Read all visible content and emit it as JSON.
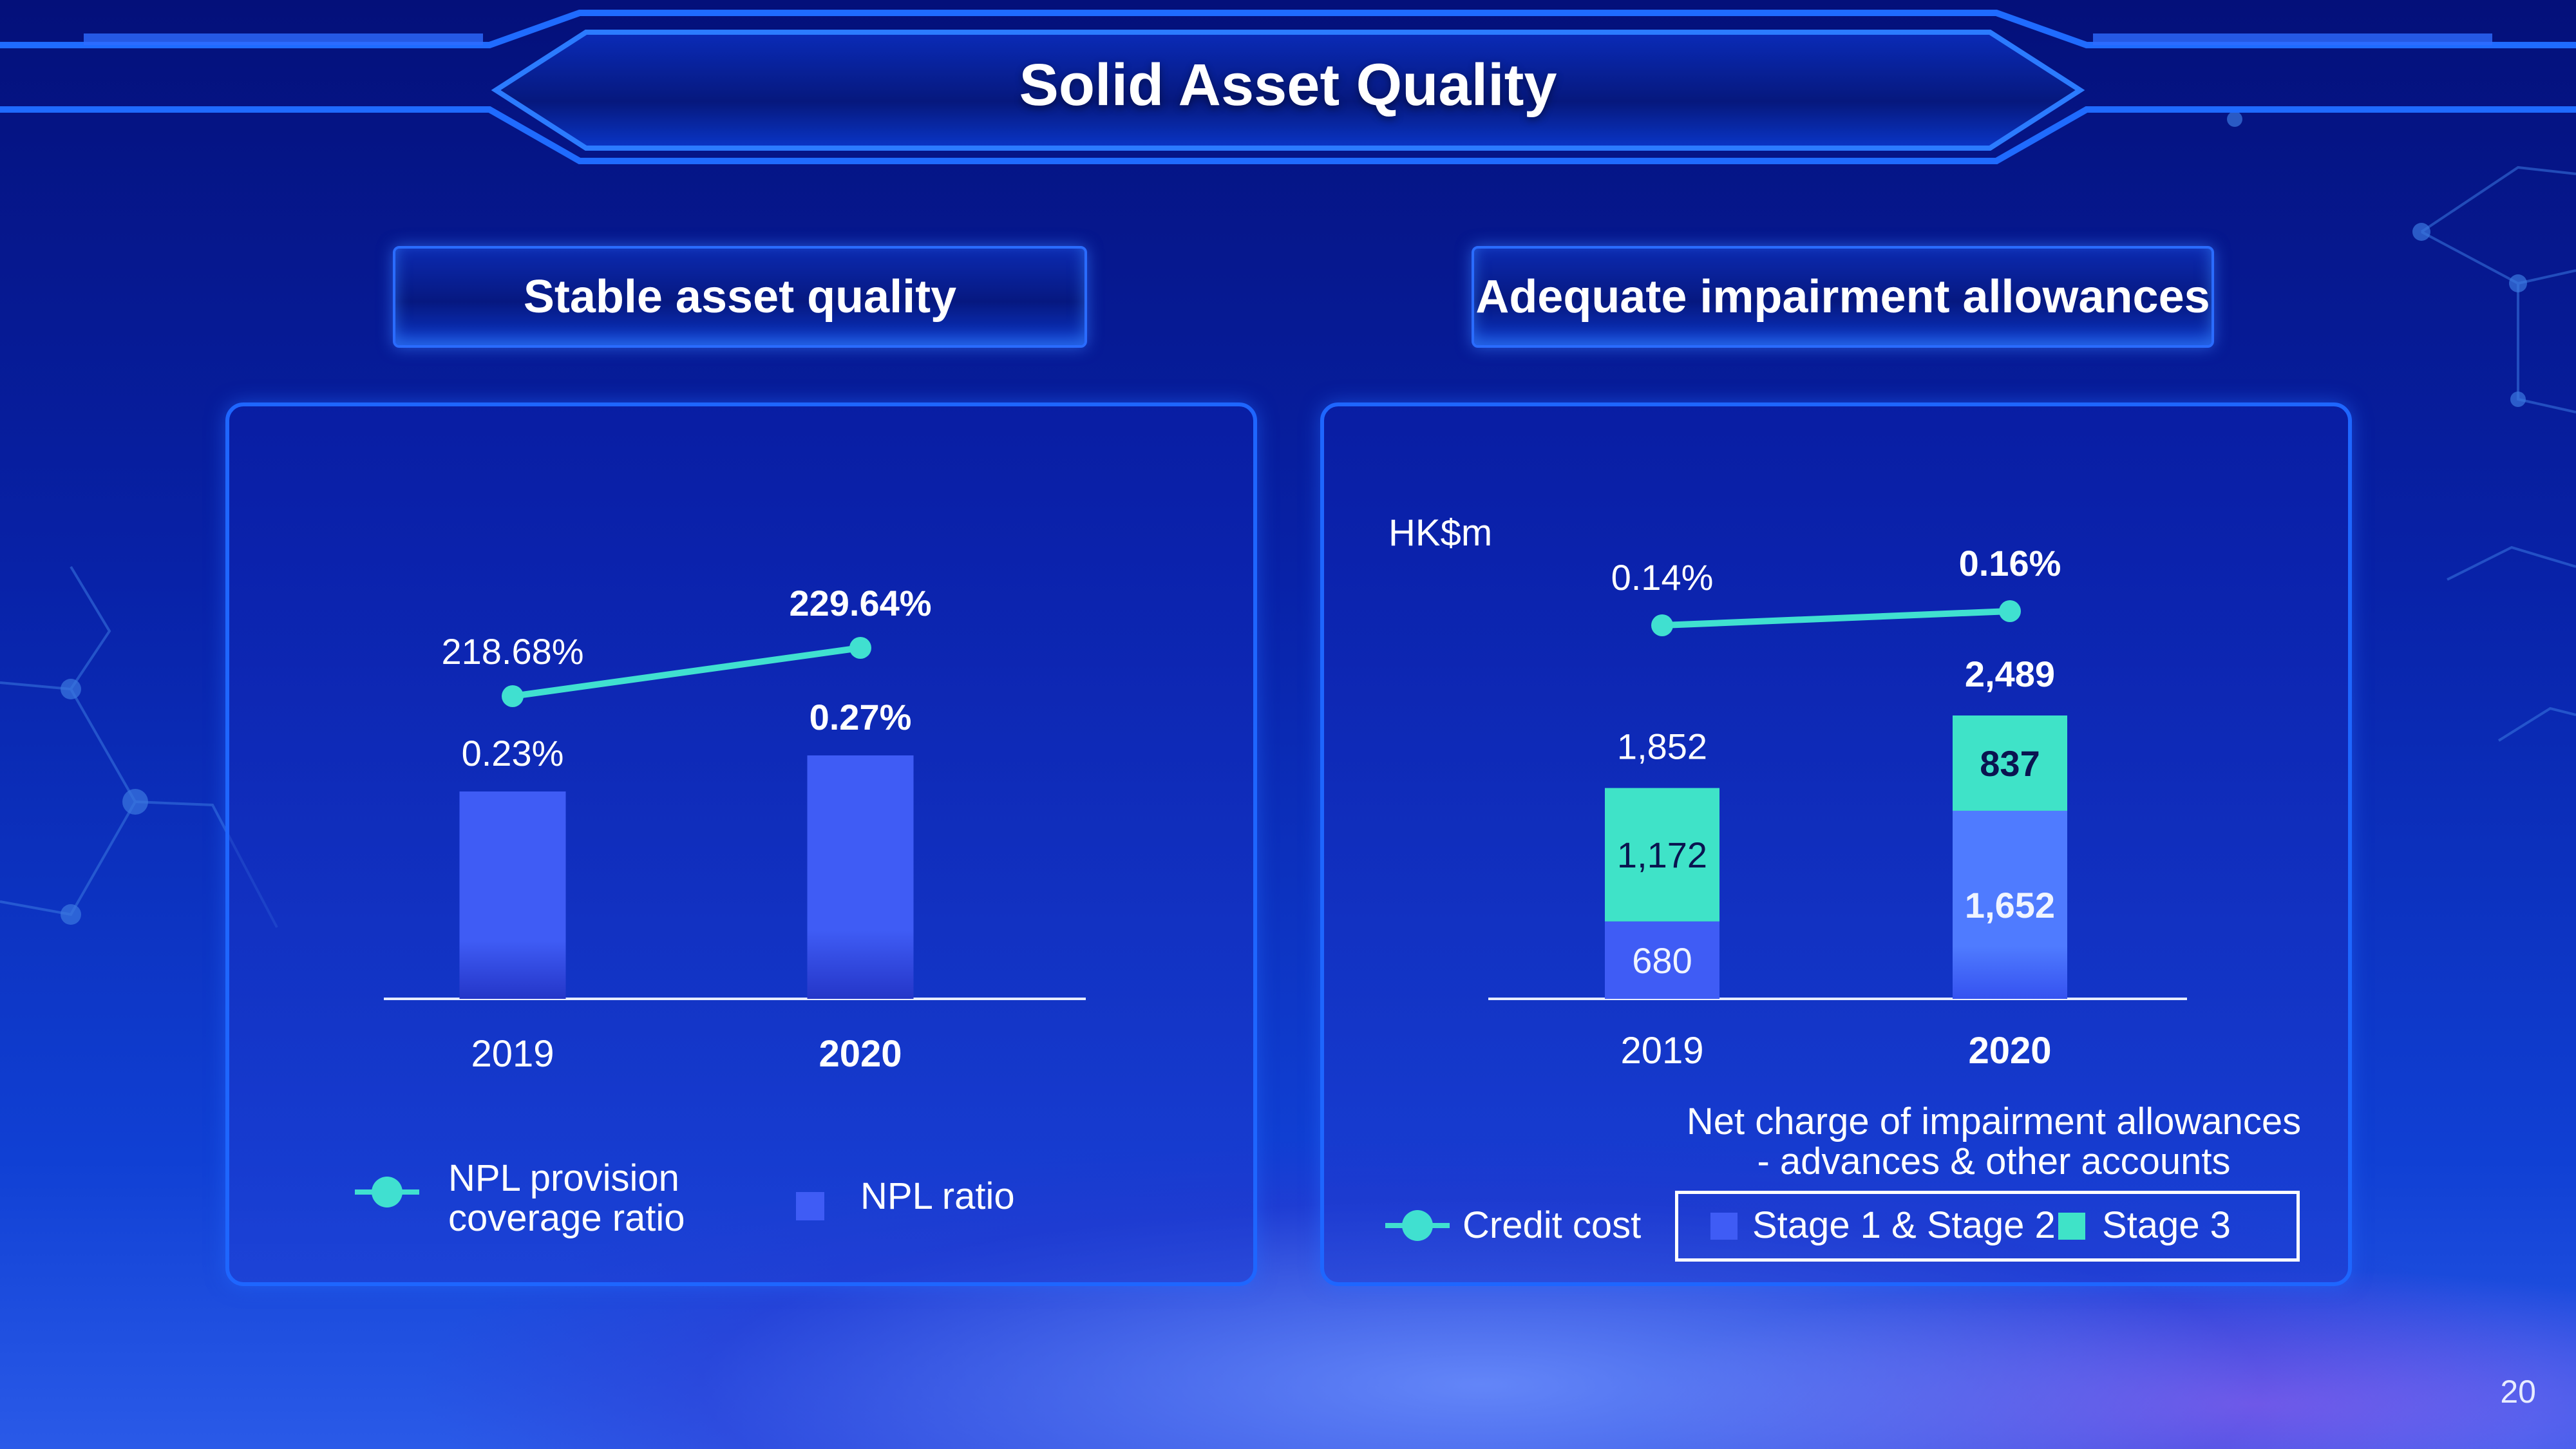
{
  "page": {
    "title": "Solid Asset Quality",
    "page_number": "20"
  },
  "left_section": {
    "title": "Stable asset quality",
    "legend": {
      "line_label": "NPL provision\ncoverage ratio",
      "bar_label": "NPL ratio"
    }
  },
  "right_section": {
    "title": "Adequate impairment allowances",
    "unit_label": "HK$m",
    "note": "Net charge of impairment allowances\n- advances & other accounts",
    "legend": {
      "line_label": "Credit cost",
      "stage12_label": "Stage 1 & Stage 2",
      "stage3_label": "Stage 3"
    }
  },
  "colors": {
    "bar_blue": "#3f5cf5",
    "bar_blue_light": "#4f7bff",
    "teal": "#3fe3c8",
    "line": "#40e0d0",
    "panel_border": "#1e66ff"
  },
  "chart_data": [
    {
      "type": "bar",
      "categories": [
        "2019",
        "2020"
      ],
      "series": [
        {
          "name": "NPL ratio",
          "values": [
            0.23,
            0.27
          ],
          "labels": [
            "0.23%",
            "0.27%"
          ]
        },
        {
          "name": "NPL provision coverage ratio",
          "type": "line",
          "values": [
            218.68,
            229.64
          ],
          "labels": [
            "218.68%",
            "229.64%"
          ]
        }
      ],
      "emphasis_category": "2020"
    },
    {
      "type": "bar",
      "stacked": true,
      "categories": [
        "2019",
        "2020"
      ],
      "ylabel": "HK$m",
      "series": [
        {
          "name": "Stage 1 & Stage 2",
          "values": [
            680,
            1652
          ],
          "labels": [
            "680",
            "1,652"
          ]
        },
        {
          "name": "Stage 3",
          "values": [
            1172,
            837
          ],
          "labels": [
            "1,172",
            "837"
          ]
        },
        {
          "name": "Credit cost",
          "type": "line",
          "values": [
            0.14,
            0.16
          ],
          "labels": [
            "0.14%",
            "0.16%"
          ]
        }
      ],
      "totals": [
        1852,
        2489
      ],
      "total_labels": [
        "1,852",
        "2,489"
      ],
      "emphasis_category": "2020"
    }
  ]
}
